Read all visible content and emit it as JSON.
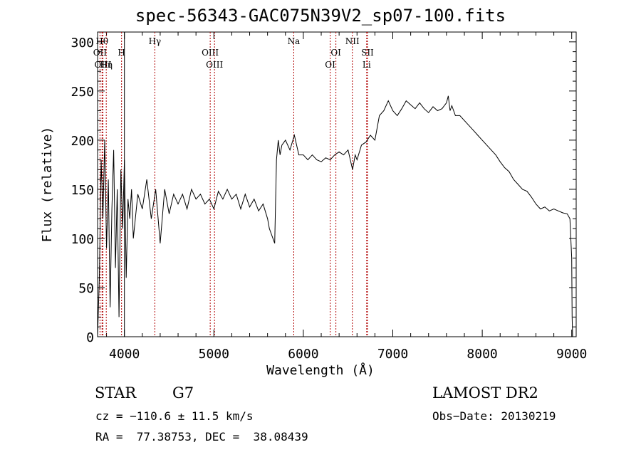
{
  "chart_data": {
    "type": "line",
    "title": "spec-56343-GAC075N39V2_sp07-100.fits",
    "xlabel": "Wavelength (Å)",
    "ylabel": "Flux (relative)",
    "xlim": [
      3700,
      9050
    ],
    "ylim": [
      0,
      310
    ],
    "xticks": [
      4000,
      5000,
      6000,
      7000,
      8000,
      9000
    ],
    "yticks": [
      0,
      50,
      100,
      150,
      200,
      250,
      300
    ],
    "grid": false,
    "series": [
      {
        "x": [
          3700,
          3720,
          3740,
          3760,
          3780,
          3800,
          3820,
          3840,
          3860,
          3880,
          3900,
          3920,
          3940,
          3960,
          3980,
          4000,
          4020,
          4040,
          4060,
          4080,
          4100,
          4150,
          4200,
          4250,
          4300,
          4350,
          4400,
          4450,
          4500,
          4550,
          4600,
          4650,
          4700,
          4750,
          4800,
          4850,
          4900,
          4950,
          5000,
          5050,
          5100,
          5150,
          5200,
          5250,
          5300,
          5350,
          5400,
          5450,
          5500,
          5550,
          5600,
          5620,
          5640,
          5660,
          5680,
          5700,
          5720,
          5740,
          5760,
          5800,
          5850,
          5900,
          5950,
          6000,
          6050,
          6100,
          6150,
          6200,
          6250,
          6300,
          6350,
          6400,
          6450,
          6500,
          6550,
          6580,
          6600,
          6650,
          6700,
          6750,
          6800,
          6850,
          6900,
          6950,
          7000,
          7050,
          7100,
          7150,
          7200,
          7250,
          7300,
          7350,
          7400,
          7450,
          7500,
          7550,
          7600,
          7620,
          7640,
          7660,
          7700,
          7750,
          7800,
          7850,
          7900,
          7950,
          8000,
          8050,
          8100,
          8150,
          8200,
          8250,
          8300,
          8350,
          8400,
          8450,
          8500,
          8550,
          8600,
          8650,
          8700,
          8750,
          8800,
          8850,
          8900,
          8950,
          8980,
          9000,
          9005,
          9010
        ],
        "y": [
          0,
          60,
          180,
          120,
          200,
          90,
          160,
          30,
          130,
          190,
          70,
          150,
          20,
          170,
          110,
          180,
          60,
          140,
          120,
          150,
          100,
          145,
          130,
          160,
          120,
          150,
          95,
          150,
          125,
          145,
          135,
          145,
          130,
          150,
          140,
          145,
          135,
          140,
          130,
          148,
          140,
          150,
          140,
          145,
          130,
          145,
          132,
          140,
          128,
          135,
          120,
          110,
          105,
          100,
          95,
          180,
          200,
          185,
          195,
          200,
          190,
          205,
          185,
          185,
          180,
          185,
          180,
          178,
          182,
          180,
          185,
          188,
          185,
          190,
          170,
          185,
          180,
          195,
          198,
          205,
          200,
          225,
          230,
          240,
          230,
          225,
          232,
          240,
          236,
          232,
          238,
          232,
          228,
          234,
          230,
          232,
          238,
          245,
          230,
          235,
          225,
          225,
          220,
          215,
          210,
          205,
          200,
          195,
          190,
          185,
          178,
          172,
          168,
          160,
          155,
          150,
          148,
          142,
          135,
          130,
          132,
          128,
          130,
          128,
          126,
          125,
          120,
          80,
          20,
          0
        ]
      }
    ],
    "lines": [
      {
        "x": 3750,
        "label": "Hθ",
        "row": 0
      },
      {
        "x": 3727,
        "label": "OII",
        "row": 1
      },
      {
        "x": 3760,
        "label": "OIII",
        "row": 2
      },
      {
        "x": 3797,
        "label": "Hη",
        "row": 2
      },
      {
        "x": 3968,
        "label": "H",
        "row": 1
      },
      {
        "x": 4340,
        "label": "Hγ",
        "row": 0
      },
      {
        "x": 4959,
        "label": "OIII",
        "row": 1
      },
      {
        "x": 5007,
        "label": "OIII",
        "row": 2
      },
      {
        "x": 5893,
        "label": "Na",
        "row": 0
      },
      {
        "x": 6300,
        "label": "OI",
        "row": 2
      },
      {
        "x": 6364,
        "label": "OI",
        "row": 1
      },
      {
        "x": 6548,
        "label": "NII",
        "row": 0
      },
      {
        "x": 6717,
        "label": "SII",
        "row": 1
      },
      {
        "x": 6708,
        "label": "Li",
        "row": 2
      }
    ],
    "solid_lines": [
      4000
    ]
  },
  "info": {
    "object_class": "STAR",
    "subclass": "G7",
    "survey": "LAMOST DR2",
    "redshift": "cz = −110.6 ± 11.5 km/s",
    "obs_date": "Obs−Date: 20130219",
    "coords": "RA =  77.38753, DEC =  38.08439"
  }
}
